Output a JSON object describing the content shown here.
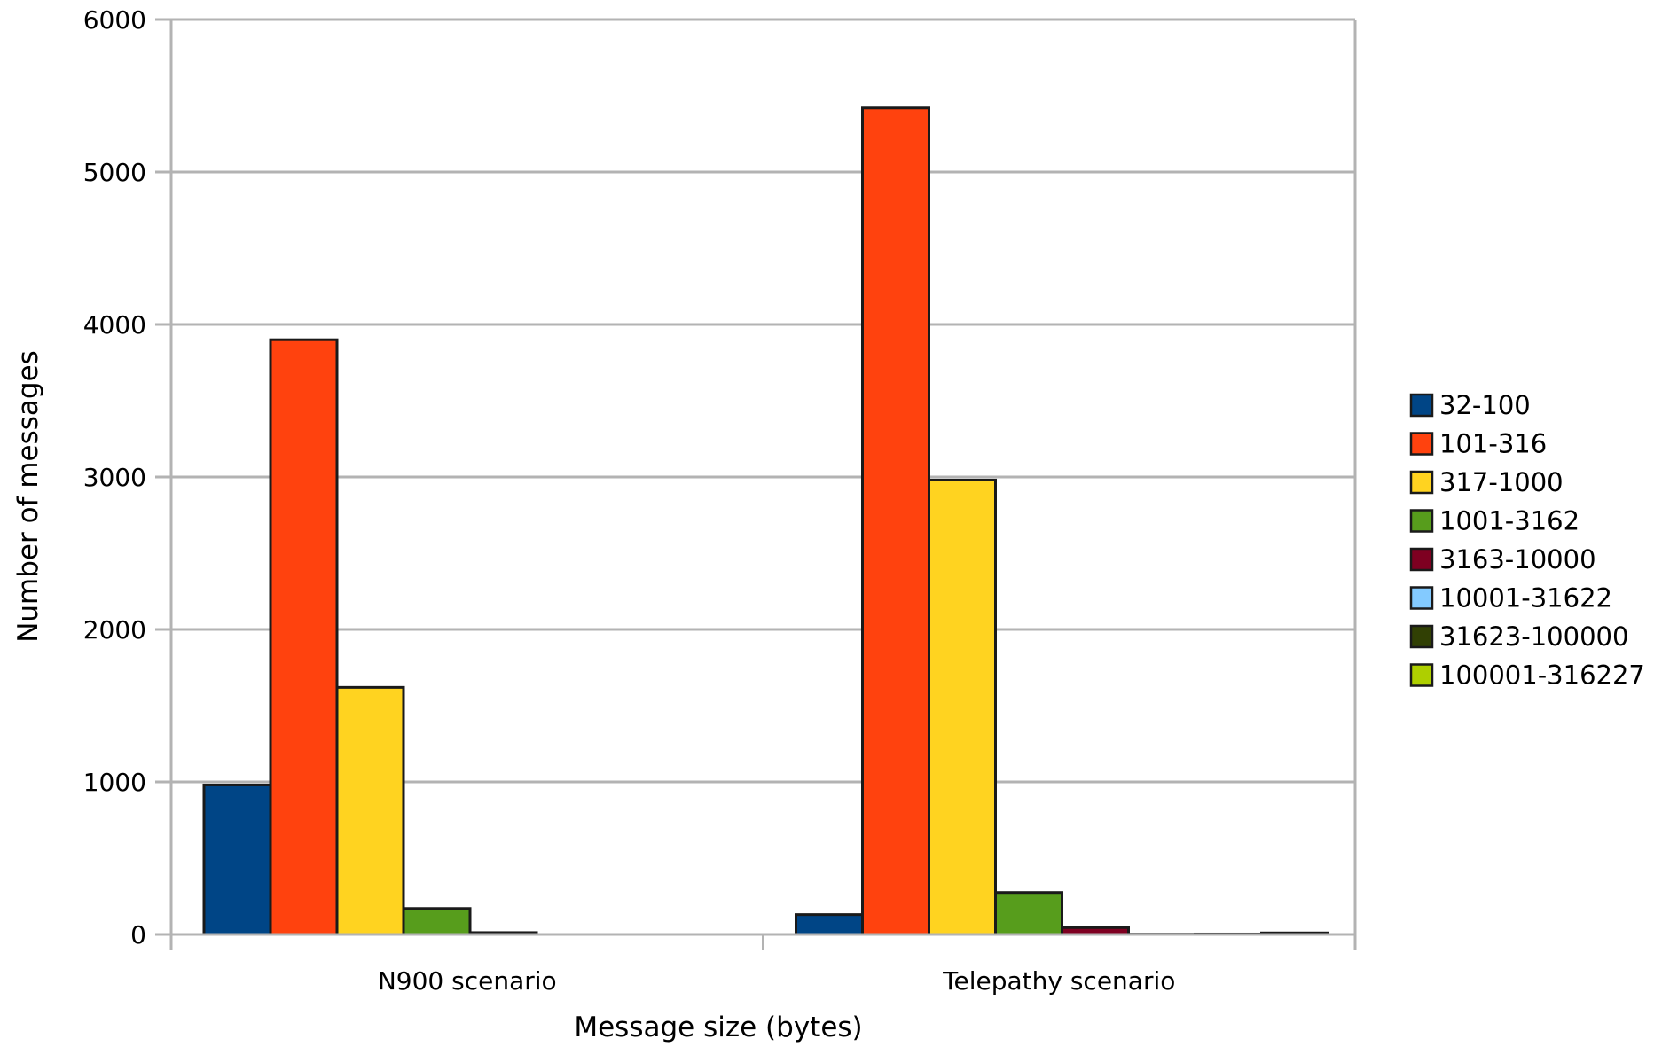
{
  "chart_data": {
    "type": "bar",
    "categories": [
      "N900 scenario",
      "Telepathy scenario"
    ],
    "series": [
      {
        "name": "32-100",
        "values": [
          980,
          130
        ],
        "color": "#004586"
      },
      {
        "name": "101-316",
        "values": [
          3900,
          5420
        ],
        "color": "#ff420e"
      },
      {
        "name": "317-1000",
        "values": [
          1620,
          2980
        ],
        "color": "#ffd320"
      },
      {
        "name": "1001-3162",
        "values": [
          170,
          275
        ],
        "color": "#579d1c"
      },
      {
        "name": "3163-10000",
        "values": [
          12,
          45
        ],
        "color": "#7e0021"
      },
      {
        "name": "10001-31622",
        "values": [
          0,
          2
        ],
        "color": "#83caff"
      },
      {
        "name": "31623-100000",
        "values": [
          0,
          3
        ],
        "color": "#314004"
      },
      {
        "name": "100001-316227",
        "values": [
          0,
          10
        ],
        "color": "#aecf00"
      }
    ],
    "xlabel": "Message size (bytes)",
    "ylabel": "Number of messages",
    "ylim": [
      0,
      6000
    ],
    "yticks": [
      "0",
      "1000",
      "2000",
      "3000",
      "4000",
      "5000",
      "6000"
    ],
    "grid": true,
    "legend_position": "right"
  }
}
